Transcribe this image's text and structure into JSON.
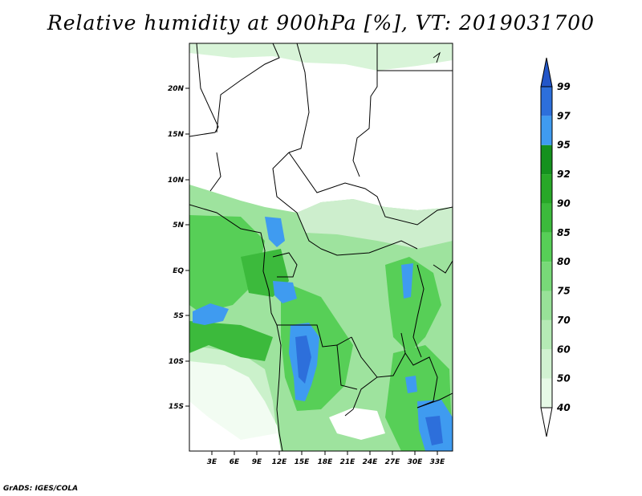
{
  "title": "Relative humidity at 900hPa [%], VT: 2019031700",
  "credit": "GrADS: IGES/COLA",
  "map": {
    "lon_range": [
      0,
      35
    ],
    "lat_range": [
      -20,
      25
    ],
    "x_ticks": [
      "3E",
      "6E",
      "9E",
      "12E",
      "15E",
      "18E",
      "21E",
      "24E",
      "27E",
      "30E",
      "33E"
    ],
    "y_ticks": [
      "20N",
      "15N",
      "10N",
      "5N",
      "EQ",
      "5S",
      "10S",
      "15S"
    ]
  },
  "colorbar": {
    "levels": [
      "40",
      "50",
      "60",
      "70",
      "75",
      "80",
      "85",
      "90",
      "92",
      "95",
      "97",
      "99"
    ],
    "colors": [
      "#ffffff",
      "#e6f9e6",
      "#d1f2d1",
      "#b5eab5",
      "#98e198",
      "#78d978",
      "#57cf57",
      "#3cba3c",
      "#28a828",
      "#14911e",
      "#3f9bf0",
      "#2d6fdb",
      "#2356c8"
    ]
  }
}
